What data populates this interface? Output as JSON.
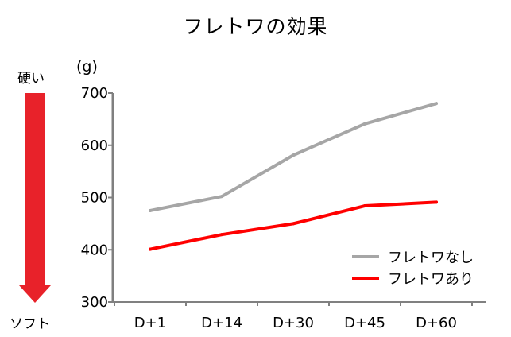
{
  "header": {
    "title": "フレトワの効果"
  },
  "indicator": {
    "top_label": "硬い",
    "bottom_label": "ソフト",
    "arrow_color": "#e8222a"
  },
  "chart_data": {
    "type": "line",
    "title": "フレトワの効果",
    "unit_label": "(g)",
    "xlabel": "",
    "ylabel": "",
    "categories": [
      "D+1",
      "D+14",
      "D+30",
      "D+45",
      "D+60"
    ],
    "ylim": [
      300,
      700
    ],
    "yticks": [
      300,
      400,
      500,
      600,
      700
    ],
    "legend_position": "bottom-right",
    "grid": false,
    "series": [
      {
        "name": "フレトワなし",
        "color": "#a6a6a6",
        "values": [
          475,
          502,
          581,
          641,
          680
        ]
      },
      {
        "name": "フレトワあり",
        "color": "#ff0000",
        "values": [
          401,
          429,
          450,
          484,
          491
        ]
      }
    ]
  }
}
